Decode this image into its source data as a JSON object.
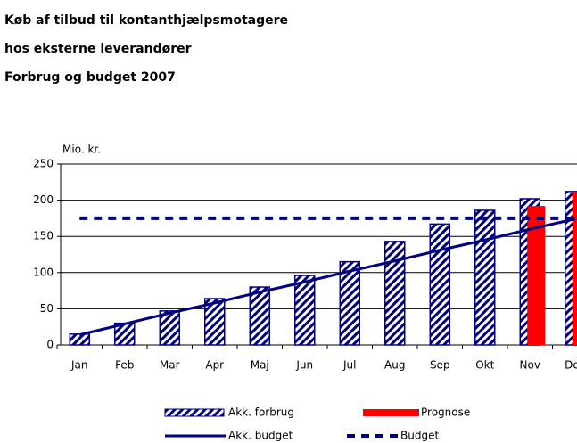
{
  "chart_data": {
    "type": "bar",
    "title": [
      "Køb af tilbud til kontanthjælpsmotagere",
      "hos eksterne leverandører",
      "Forbrug og budget 2007"
    ],
    "y_label": "Mio. kr.",
    "categories": [
      "Jan",
      "Feb",
      "Mar",
      "Apr",
      "Maj",
      "Jun",
      "Jul",
      "Aug",
      "Sep",
      "Okt",
      "Nov",
      "Dec"
    ],
    "series": [
      {
        "name": "Akk. forbrug",
        "color": "#000080",
        "style": "hatched",
        "values": [
          15,
          30,
          47,
          64,
          80,
          96,
          115,
          143,
          167,
          186,
          202,
          212
        ]
      },
      {
        "name": "Prognose",
        "color": "#ff0000",
        "style": "solid",
        "values": [
          null,
          null,
          null,
          null,
          null,
          null,
          null,
          null,
          null,
          null,
          192,
          212
        ]
      },
      {
        "name": "Akk. budget",
        "color": "#000080",
        "style": "line",
        "values": [
          14,
          29,
          44,
          58,
          73,
          87,
          102,
          116,
          131,
          145,
          160,
          174
        ]
      },
      {
        "name": "Budget",
        "color": "#000080",
        "style": "dashed",
        "values": [
          175,
          175,
          175,
          175,
          175,
          175,
          175,
          175,
          175,
          175,
          175,
          175
        ]
      }
    ],
    "ylim": [
      0,
      250
    ],
    "yticks": [
      0,
      50,
      100,
      150,
      200,
      250
    ],
    "grid": true
  }
}
